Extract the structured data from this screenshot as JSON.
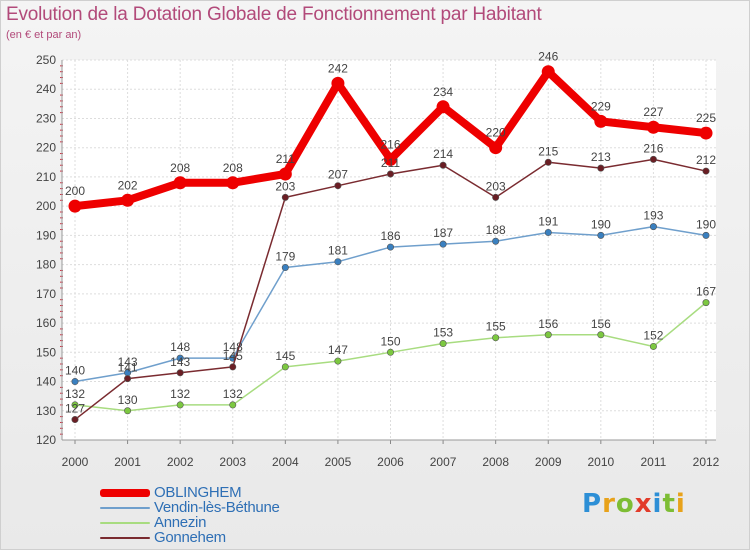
{
  "title": "Evolution de la Dotation Globale de Fonctionnement par Habitant",
  "subtitle": "(en € et par an)",
  "logo": {
    "letters": [
      "P",
      "r",
      "o",
      "x",
      "i",
      "t",
      "i"
    ],
    "colors": [
      "#2d8fd6",
      "#e8a21a",
      "#7dbd34",
      "#e23b2a",
      "#2d8fd6",
      "#7dbd34",
      "#e8a21a"
    ]
  },
  "chart_data": {
    "type": "line",
    "x": [
      "2000",
      "2001",
      "2002",
      "2003",
      "2004",
      "2005",
      "2006",
      "2007",
      "2008",
      "2009",
      "2010",
      "2011",
      "2012"
    ],
    "ylim": [
      120,
      250
    ],
    "yticks": [
      "120",
      "130",
      "140",
      "150",
      "160",
      "170",
      "180",
      "190",
      "200",
      "210",
      "220",
      "230",
      "240",
      "250"
    ],
    "grid": true,
    "legend_placement": "bottom-left",
    "series": [
      {
        "name": "Vendin-lès-Béthune",
        "color": "#6f9fcc",
        "point_color": "#3a80c0",
        "values": [
          140,
          143,
          148,
          148,
          179,
          181,
          186,
          187,
          188,
          191,
          190,
          193,
          190
        ],
        "width": 1.5,
        "r": 3.2
      },
      {
        "name": "Annezin",
        "color": "#a8dc80",
        "point_color": "#7cc840",
        "values": [
          132,
          130,
          132,
          132,
          145,
          147,
          150,
          153,
          155,
          156,
          156,
          152,
          167
        ],
        "width": 1.5,
        "r": 3.2
      },
      {
        "name": "Gonnehem",
        "color": "#7a2b30",
        "point_color": "#6a1e24",
        "values": [
          127,
          141,
          143,
          145,
          203,
          207,
          211,
          214,
          203,
          215,
          213,
          216,
          212
        ],
        "width": 1.5,
        "r": 3.2
      },
      {
        "name": "OBLINGHEM",
        "color": "#ee0000",
        "point_color": "#ee0000",
        "values": [
          200,
          202,
          208,
          208,
          211,
          242,
          216,
          234,
          220,
          246,
          229,
          227,
          225
        ],
        "width": 8,
        "r": 6.5
      }
    ],
    "legend_order": [
      3,
      0,
      1,
      2
    ]
  }
}
